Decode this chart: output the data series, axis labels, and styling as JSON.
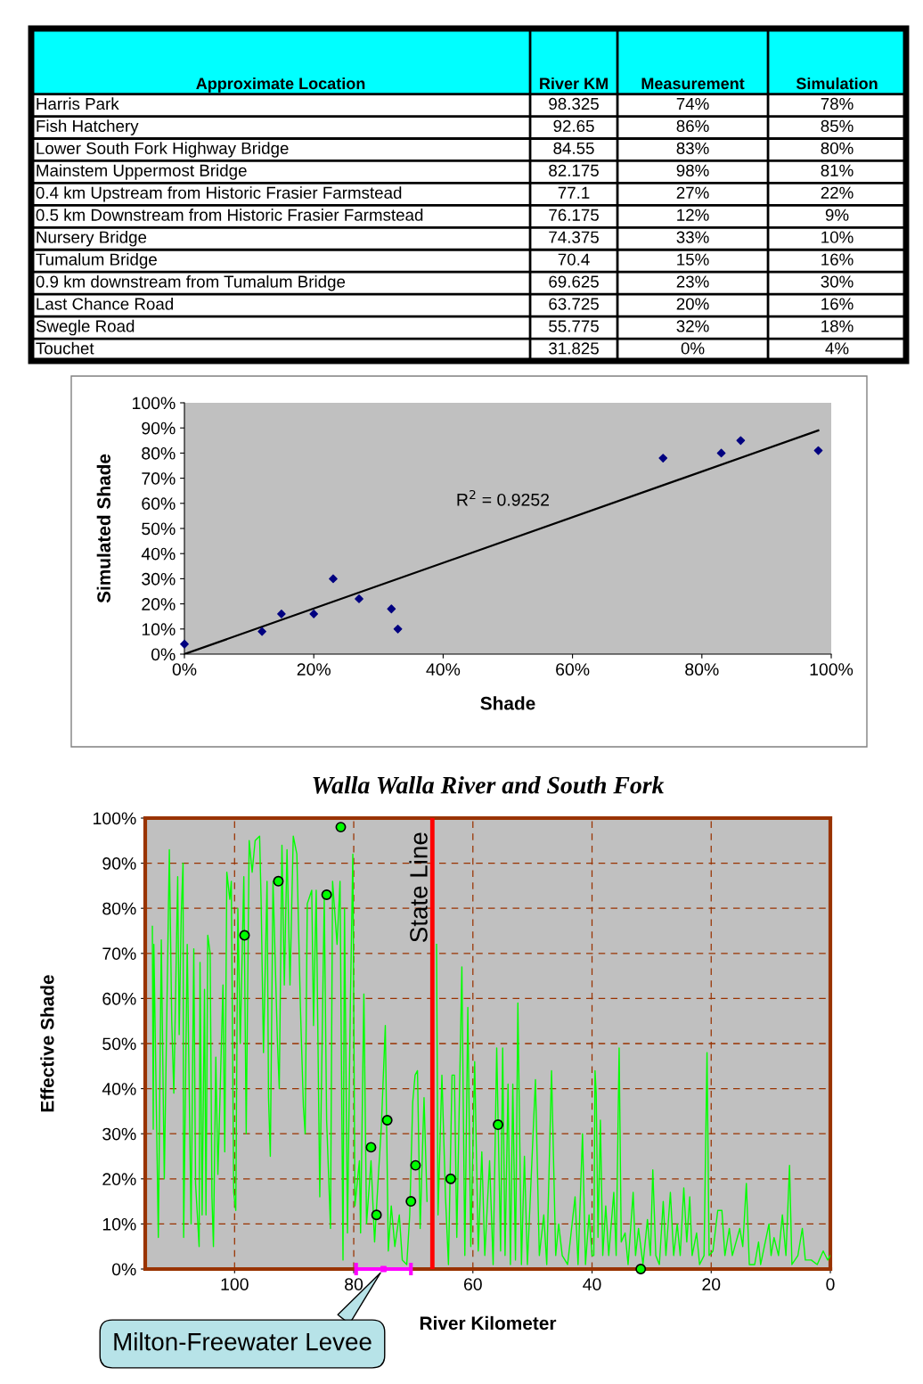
{
  "chart_data": [
    {
      "type": "other",
      "color": "#00ffff",
      "categories": [
        "Approximate Location",
        "River KM",
        "Measurement",
        "Simulation"
      ],
      "annotations": [
        "Harris Park",
        "98.325",
        "74%",
        "78%",
        "Fish Hatchery",
        "92.65",
        "86%",
        "85%",
        "Lower South Fork Highway Bridge",
        "84.55",
        "83%",
        "80%",
        "Mainstem Uppermost Bridge",
        "82.175",
        "98%",
        "81%",
        "0.4 km Upstream from Historic Frasier Farmstead",
        "77.1",
        "27%",
        "22%",
        "0.5 km Downstream from Historic Frasier Farmstead",
        "76.175",
        "12%",
        "9%",
        "Nursery Bridge",
        "74.375",
        "33%",
        "10%",
        "Tumalum Bridge",
        "70.4",
        "15%",
        "16%",
        "0.9 km downstream from Tumalum Bridge",
        "69.625",
        "23%",
        "30%",
        "Last Chance Road",
        "63.725",
        "20%",
        "16%",
        "Swegle Road",
        "55.775",
        "32%",
        "18%",
        "Touchet",
        "31.825",
        "0%",
        "4%"
      ]
    },
    {
      "type": "scatter",
      "xlabel": "Shade",
      "ylabel": "Simulated Shade",
      "xlim": [
        0,
        100
      ],
      "ylim": [
        0,
        100
      ],
      "xticks": [
        {
          "value": 0,
          "label": "0%"
        },
        {
          "value": 20,
          "label": "20%"
        },
        {
          "value": 40,
          "label": "40%"
        },
        {
          "value": 60,
          "label": "60%"
        },
        {
          "value": 80,
          "label": "80%"
        },
        {
          "value": 100,
          "label": "100%"
        }
      ],
      "yticks": [
        {
          "value": 0,
          "label": "0%"
        },
        {
          "value": 10,
          "label": "10%"
        },
        {
          "value": 20,
          "label": "20%"
        },
        {
          "value": 30,
          "label": "30%"
        },
        {
          "value": 40,
          "label": "40%"
        },
        {
          "value": 50,
          "label": "50%"
        },
        {
          "value": 60,
          "label": "60%"
        },
        {
          "value": 70,
          "label": "70%"
        },
        {
          "value": 80,
          "label": "80%"
        },
        {
          "value": 90,
          "label": "90%"
        },
        {
          "value": 100,
          "label": "100%"
        }
      ],
      "grid": false,
      "annotations": [
        "R$^{2}$ = 0.9252"
      ],
      "series": [
        {
          "type": "scatter",
          "color": "#000080",
          "marker": "diamond",
          "x": [
            74,
            86,
            83,
            98,
            27,
            12,
            33,
            15,
            23,
            20,
            32,
            0
          ],
          "values": [
            78,
            85,
            80,
            81,
            22,
            9,
            10,
            16,
            30,
            16,
            18,
            4
          ]
        },
        {
          "type": "line",
          "color": "#000000",
          "marker": "none",
          "x": [
            0,
            98
          ],
          "values": [
            0,
            89
          ]
        }
      ]
    },
    {
      "type": "line",
      "title": "Walla Walla River and South Fork",
      "xlabel": "River Kilometer",
      "ylabel": "Effective Shade",
      "xlim": [
        115,
        0
      ],
      "ylim": [
        0,
        100
      ],
      "xticks": [
        100,
        80,
        60,
        40,
        20,
        0
      ],
      "yticks": [
        {
          "value": 0,
          "label": "0%"
        },
        {
          "value": 10,
          "label": "10%"
        },
        {
          "value": 20,
          "label": "20%"
        },
        {
          "value": 30,
          "label": "30%"
        },
        {
          "value": 40,
          "label": "40%"
        },
        {
          "value": 50,
          "label": "50%"
        },
        {
          "value": 60,
          "label": "60%"
        },
        {
          "value": 70,
          "label": "70%"
        },
        {
          "value": 80,
          "label": "80%"
        },
        {
          "value": 90,
          "label": "90%"
        },
        {
          "value": 100,
          "label": "100%"
        }
      ],
      "grid": true,
      "ref_lines": [
        {
          "axis": "x",
          "value": 66.8,
          "label": "State Line",
          "color": "#ff0000"
        }
      ],
      "annotations": [
        {
          "text": "Milton-Freewater Levee",
          "x": 75,
          "y": 0
        }
      ],
      "series": [
        {
          "type": "line",
          "color": "#00ff00",
          "marker": "none",
          "x": [
            113.8,
            113.65,
            113.55,
            112.8,
            112.3,
            111.8,
            110.95,
            110.55,
            110.2,
            109.55,
            109.3,
            108.95,
            108.65,
            108.55,
            107.95,
            107.3,
            106.85,
            106.55,
            105.95,
            105.8,
            105.45,
            105.05,
            104.8,
            104.5,
            104.1,
            103.8,
            103.55,
            103.15,
            102.8,
            102.45,
            101.95,
            101.65,
            101.3,
            100.8,
            100.55,
            100.15,
            99.8,
            99.45,
            99.05,
            98.45,
            98.05,
            97.55,
            97.05,
            96.55,
            95.8,
            95.55,
            95.15,
            94.55,
            94.3,
            94.0,
            93.55,
            92.8,
            92.5,
            92.05,
            91.65,
            91.2,
            90.7,
            90.15,
            89.55,
            88.95,
            88.45,
            88.15,
            87.8,
            87.05,
            86.75,
            86.3,
            85.7,
            85.3,
            84.95,
            84.55,
            83.9,
            83.55,
            82.8,
            82.3,
            81.8,
            81.55,
            81.05,
            80.55,
            80.15,
            79.8,
            79.05,
            78.85,
            78.3,
            77.85,
            77.1,
            76.5,
            75.85,
            75.35,
            74.7,
            74.2,
            73.7,
            73.1,
            72.35,
            71.85,
            71.1,
            70.6,
            70.1,
            69.7,
            69.3,
            68.85,
            68.2,
            67.7,
            67.1,
            66.7,
            66.1,
            65.85,
            65.2,
            64.6,
            64.1,
            63.5,
            63.1,
            62.7,
            61.85,
            61.35,
            60.85,
            60.35,
            59.7,
            59.1,
            58.5,
            58.0,
            57.2,
            56.6,
            56.0,
            55.35,
            55.0,
            54.6,
            54.1,
            53.7,
            53.3,
            52.85,
            52.45,
            51.85,
            51.35,
            50.85,
            49.5,
            48.85,
            48.1,
            47.6,
            46.8,
            46.1,
            45.6,
            45.0,
            44.1,
            42.85,
            42.35,
            41.6,
            41.1,
            40.5,
            40.0,
            39.7,
            39.5,
            39.3,
            39.0,
            38.6,
            38.2,
            37.7,
            37.2,
            36.35,
            35.95,
            35.45,
            35.1,
            34.45,
            33.95,
            33.1,
            32.7,
            32.2,
            31.45,
            30.7,
            30.2,
            29.8,
            29.3,
            28.7,
            28.05,
            27.6,
            26.85,
            26.3,
            25.7,
            25.2,
            24.6,
            24.1,
            23.6,
            23.2,
            22.45,
            21.95,
            21.2,
            20.7,
            20.35,
            19.7,
            18.9,
            18.2,
            17.7,
            16.95,
            16.45,
            15.2,
            14.7,
            14.1,
            13.6,
            12.7,
            12.05,
            11.7,
            10.3,
            9.95,
            9.45,
            8.7,
            8.05,
            7.45,
            6.85,
            6.45,
            5.45,
            4.7,
            4.2,
            3.2,
            2.2,
            1.2,
            0.45,
            0.0
          ],
          "values": [
            76,
            31,
            72,
            7,
            73,
            20,
            93,
            55,
            39,
            87,
            52,
            79,
            90,
            7,
            72,
            10,
            71,
            19,
            5,
            68,
            12,
            62,
            12,
            74,
            70,
            16,
            5,
            47,
            21,
            38,
            63,
            26,
            88,
            82,
            86,
            17,
            13,
            80,
            50,
            87,
            30,
            95,
            88,
            95,
            96,
            82,
            48,
            86,
            38,
            25,
            86,
            50,
            40,
            94,
            63,
            93,
            63,
            96,
            92,
            58,
            36,
            30,
            81,
            84,
            54,
            84,
            16,
            51,
            82,
            33,
            9,
            86,
            72,
            86,
            2,
            80,
            8,
            60,
            92,
            14,
            24,
            8,
            61,
            10,
            24,
            6,
            21,
            32,
            54,
            4,
            14,
            5,
            12,
            2,
            1,
            12,
            37,
            43,
            44,
            9,
            38,
            15,
            null,
            null,
            72,
            12,
            43,
            16,
            1,
            43,
            43,
            7,
            67,
            3,
            58,
            5,
            46,
            4,
            26,
            3,
            24,
            1,
            49,
            4,
            49,
            3,
            41,
            1,
            41,
            2,
            59,
            1,
            25,
            1,
            42,
            3,
            12,
            1,
            44,
            3,
            10,
            3,
            1,
            16,
            1,
            30,
            1,
            12,
            3,
            3,
            44,
            39,
            7,
            33,
            3,
            14,
            3,
            17,
            3,
            49,
            6,
            8,
            1,
            17,
            3,
            9,
            1,
            11,
            3,
            22,
            3,
            1,
            15,
            3,
            17,
            3,
            10,
            3,
            18,
            6,
            16,
            3,
            8,
            1,
            3,
            48,
            3,
            4,
            13,
            13,
            3,
            9,
            3,
            9,
            5,
            19,
            1,
            1,
            6,
            1,
            10,
            3,
            7,
            3,
            12,
            3,
            23,
            1,
            3,
            9,
            2,
            2,
            1,
            4,
            2,
            3
          ]
        },
        {
          "type": "scatter",
          "color": "#00ff00",
          "marker": "circle",
          "x": [
            98.325,
            92.65,
            84.55,
            82.175,
            77.1,
            76.175,
            74.375,
            70.4,
            69.625,
            63.725,
            55.775,
            31.825
          ],
          "values": [
            74,
            86,
            83,
            98,
            27,
            12,
            33,
            15,
            23,
            20,
            32,
            0
          ]
        },
        {
          "type": "scatter",
          "color": "#ff00ff",
          "marker": "square",
          "x": [
            75
          ],
          "values": [
            0
          ],
          "xerrors": [
            4.6
          ]
        }
      ]
    }
  ]
}
